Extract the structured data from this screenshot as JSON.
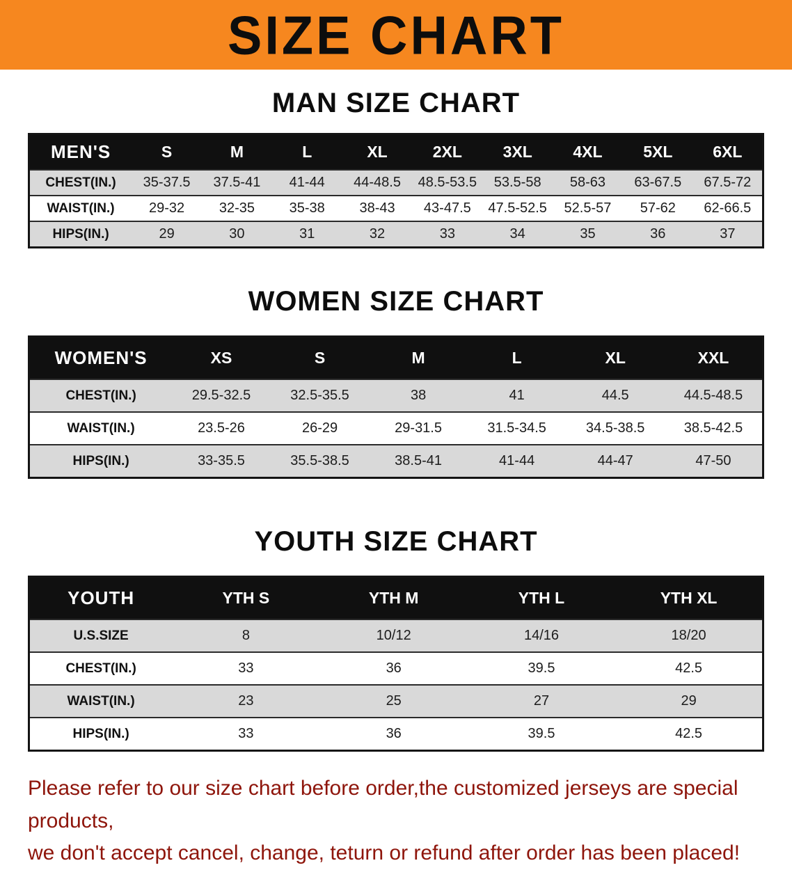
{
  "banner": {
    "title": "SIZE CHART",
    "bg_color": "#f6871f"
  },
  "colors": {
    "table_header_bg": "#101010",
    "row_stripe": "#d9d9d9",
    "note_text": "#8e150b"
  },
  "sections": [
    {
      "title": "MAN SIZE CHART",
      "table": {
        "header": [
          "MEN'S",
          "S",
          "M",
          "L",
          "XL",
          "2XL",
          "3XL",
          "4XL",
          "5XL",
          "6XL"
        ],
        "rows": [
          [
            "CHEST(IN.)",
            "35-37.5",
            "37.5-41",
            "41-44",
            "44-48.5",
            "48.5-53.5",
            "53.5-58",
            "58-63",
            "63-67.5",
            "67.5-72"
          ],
          [
            "WAIST(IN.)",
            "29-32",
            "32-35",
            "35-38",
            "38-43",
            "43-47.5",
            "47.5-52.5",
            "52.5-57",
            "57-62",
            "62-66.5"
          ],
          [
            "HIPS(IN.)",
            "29",
            "30",
            "31",
            "32",
            "33",
            "34",
            "35",
            "36",
            "37"
          ]
        ]
      }
    },
    {
      "title": "WOMEN SIZE CHART",
      "table": {
        "header": [
          "WOMEN'S",
          "XS",
          "S",
          "M",
          "L",
          "XL",
          "XXL"
        ],
        "rows": [
          [
            "CHEST(IN.)",
            "29.5-32.5",
            "32.5-35.5",
            "38",
            "41",
            "44.5",
            "44.5-48.5"
          ],
          [
            "WAIST(IN.)",
            "23.5-26",
            "26-29",
            "29-31.5",
            "31.5-34.5",
            "34.5-38.5",
            "38.5-42.5"
          ],
          [
            "HIPS(IN.)",
            "33-35.5",
            "35.5-38.5",
            "38.5-41",
            "41-44",
            "44-47",
            "47-50"
          ]
        ]
      }
    },
    {
      "title": "YOUTH SIZE CHART",
      "table": {
        "header": [
          "YOUTH",
          "YTH S",
          "YTH M",
          "YTH L",
          "YTH XL"
        ],
        "rows": [
          [
            "U.S.SIZE",
            "8",
            "10/12",
            "14/16",
            "18/20"
          ],
          [
            "CHEST(IN.)",
            "33",
            "36",
            "39.5",
            "42.5"
          ],
          [
            "WAIST(IN.)",
            "23",
            "25",
            "27",
            "29"
          ],
          [
            "HIPS(IN.)",
            "33",
            "36",
            "39.5",
            "42.5"
          ]
        ]
      }
    }
  ],
  "note": {
    "line1": "Please refer to our size chart before order,the customized jerseys are special products,",
    "line2": "we don't accept cancel, change, teturn or refund after order has been placed!"
  }
}
